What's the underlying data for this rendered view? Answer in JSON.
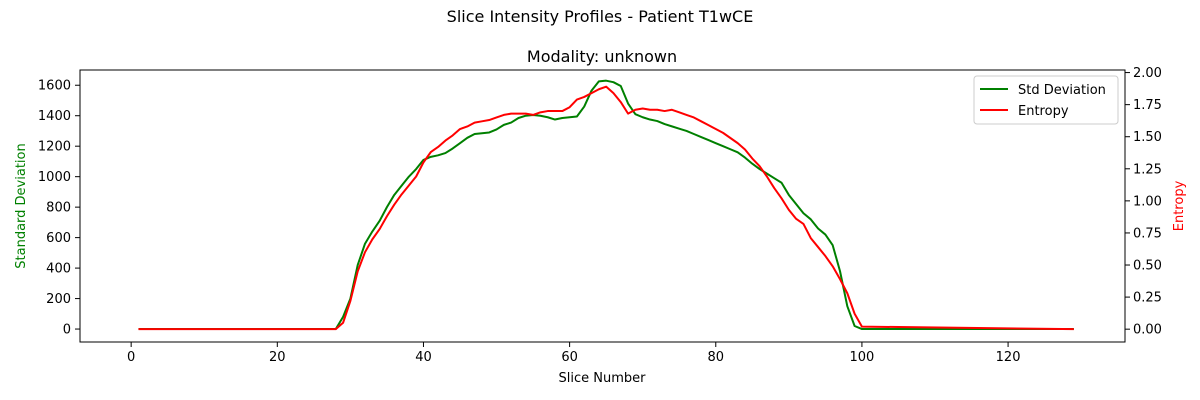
{
  "chart_data": {
    "type": "line",
    "suptitle": "Slice Intensity Profiles - Patient T1wCE",
    "title": "Modality: unknown",
    "xlabel": "Slice Number",
    "ylabel_left": "Standard Deviation",
    "ylabel_right": "Entropy",
    "xlim": [
      -7,
      136
    ],
    "ylim_left": [
      -85,
      1700
    ],
    "ylim_right": [
      -0.1,
      2.02
    ],
    "x_ticks": [
      0,
      20,
      40,
      60,
      80,
      100,
      120
    ],
    "y_left_ticks": [
      0,
      200,
      400,
      600,
      800,
      1000,
      1200,
      1400,
      1600
    ],
    "y_right_ticks": [
      0.0,
      0.25,
      0.5,
      0.75,
      1.0,
      1.25,
      1.5,
      1.75,
      2.0
    ],
    "y_right_tick_labels": [
      "0.00",
      "0.25",
      "0.50",
      "0.75",
      "1.00",
      "1.25",
      "1.50",
      "1.75",
      "2.00"
    ],
    "grid": false,
    "legend_position": "top-right",
    "series": [
      {
        "name": "Std Deviation",
        "axis": "left",
        "color": "#008000",
        "x": [
          1,
          28,
          29,
          30,
          31,
          32,
          33,
          34,
          35,
          36,
          37,
          38,
          39,
          40,
          41,
          42,
          43,
          44,
          45,
          46,
          47,
          48,
          49,
          50,
          51,
          52,
          53,
          54,
          55,
          56,
          57,
          58,
          59,
          60,
          61,
          62,
          63,
          64,
          65,
          66,
          67,
          68,
          69,
          70,
          71,
          72,
          73,
          74,
          75,
          76,
          77,
          78,
          79,
          80,
          81,
          82,
          83,
          84,
          85,
          86,
          87,
          88,
          89,
          90,
          91,
          92,
          93,
          94,
          95,
          96,
          97,
          98,
          99,
          100,
          129
        ],
        "y": [
          0,
          0,
          80,
          200,
          420,
          560,
          640,
          710,
          800,
          880,
          940,
          1000,
          1050,
          1110,
          1130,
          1140,
          1155,
          1185,
          1220,
          1255,
          1280,
          1285,
          1290,
          1310,
          1340,
          1355,
          1385,
          1400,
          1405,
          1400,
          1390,
          1375,
          1385,
          1390,
          1395,
          1460,
          1565,
          1625,
          1630,
          1620,
          1595,
          1480,
          1410,
          1390,
          1375,
          1365,
          1345,
          1330,
          1315,
          1300,
          1280,
          1260,
          1240,
          1220,
          1200,
          1180,
          1160,
          1125,
          1085,
          1050,
          1020,
          990,
          960,
          880,
          820,
          760,
          720,
          660,
          620,
          550,
          380,
          150,
          20,
          0,
          0
        ]
      },
      {
        "name": "Entropy",
        "axis": "right",
        "color": "#ff0000",
        "x": [
          1,
          28,
          29,
          30,
          31,
          32,
          33,
          34,
          35,
          36,
          37,
          38,
          39,
          40,
          41,
          42,
          43,
          44,
          45,
          46,
          47,
          48,
          49,
          50,
          51,
          52,
          53,
          54,
          55,
          56,
          57,
          58,
          59,
          60,
          61,
          62,
          63,
          64,
          65,
          66,
          67,
          68,
          69,
          70,
          71,
          72,
          73,
          74,
          75,
          76,
          77,
          78,
          79,
          80,
          81,
          82,
          83,
          84,
          85,
          86,
          87,
          88,
          89,
          90,
          91,
          92,
          93,
          94,
          95,
          96,
          97,
          98,
          99,
          100,
          129
        ],
        "y": [
          0,
          0,
          0.05,
          0.22,
          0.45,
          0.6,
          0.7,
          0.78,
          0.88,
          0.97,
          1.05,
          1.12,
          1.19,
          1.3,
          1.38,
          1.42,
          1.47,
          1.51,
          1.56,
          1.58,
          1.61,
          1.62,
          1.63,
          1.65,
          1.67,
          1.68,
          1.68,
          1.68,
          1.67,
          1.69,
          1.7,
          1.7,
          1.7,
          1.73,
          1.79,
          1.81,
          1.84,
          1.87,
          1.89,
          1.84,
          1.77,
          1.68,
          1.71,
          1.72,
          1.71,
          1.71,
          1.7,
          1.71,
          1.69,
          1.67,
          1.65,
          1.62,
          1.59,
          1.56,
          1.53,
          1.49,
          1.45,
          1.4,
          1.33,
          1.27,
          1.19,
          1.1,
          1.02,
          0.93,
          0.86,
          0.82,
          0.71,
          0.64,
          0.57,
          0.49,
          0.39,
          0.28,
          0.12,
          0.02,
          0
        ]
      }
    ]
  }
}
